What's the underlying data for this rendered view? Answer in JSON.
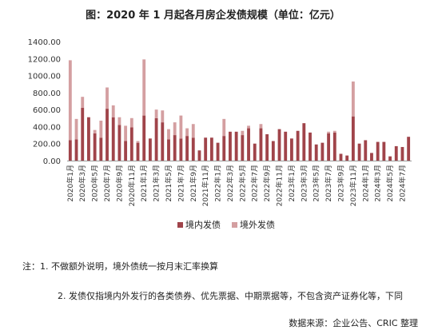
{
  "chart_data": {
    "type": "bar",
    "stacked": true,
    "title": "图：2020 年 1 月起各月房企发债规模（单位：亿元）",
    "xlabel": "",
    "ylabel": "",
    "ylim": [
      0,
      1400
    ],
    "yticks": [
      "0.00",
      "200.00",
      "400.00",
      "600.00",
      "800.00",
      "1000.00",
      "1200.00",
      "1400.00"
    ],
    "grid": false,
    "legend_position": "bottom",
    "categories": [
      "2020年1月",
      "2020年2月",
      "2020年3月",
      "2020年4月",
      "2020年5月",
      "2020年6月",
      "2020年7月",
      "2020年8月",
      "2020年9月",
      "2020年10月",
      "2020年11月",
      "2020年12月",
      "2021年1月",
      "2021年2月",
      "2021年3月",
      "2021年4月",
      "2021年5月",
      "2021年6月",
      "2021年7月",
      "2021年8月",
      "2021年9月",
      "2021年10月",
      "2021年11月",
      "2021年12月",
      "2022年1月",
      "2022年2月",
      "2022年3月",
      "2022年4月",
      "2022年5月",
      "2022年6月",
      "2022年7月",
      "2022年8月",
      "2022年9月",
      "2022年10月",
      "2022年11月",
      "2022年12月",
      "2023年1月",
      "2023年2月",
      "2023年3月",
      "2023年4月",
      "2023年5月",
      "2023年6月",
      "2023年7月",
      "2023年8月",
      "2023年9月",
      "2023年10月",
      "2023年11月",
      "2023年12月",
      "2024年1月",
      "2024年2月",
      "2024年3月",
      "2024年4月",
      "2024年5月",
      "2024年6月",
      "2024年7月",
      "2024年8月"
    ],
    "tick_labels": [
      "2020年1月",
      "2020年3月",
      "2020年5月",
      "2020年7月",
      "2020年9月",
      "2020年11月",
      "2021年1月",
      "2021年3月",
      "2021年5月",
      "2021年7月",
      "2021年9月",
      "2021年11月",
      "2022年1月",
      "2022年3月",
      "2022年5月",
      "2022年7月",
      "2022年9月",
      "2022年11月",
      "2023年1月",
      "2023年3月",
      "2023年5月",
      "2023年7月",
      "2023年9月",
      "2023年11月",
      "2024年1月",
      "2024年3月",
      "2024年5月",
      "2024年7月"
    ],
    "series": [
      {
        "name": "境内发债",
        "color": "#a0444a",
        "values": [
          240,
          250,
          620,
          510,
          320,
          270,
          610,
          510,
          420,
          230,
          390,
          210,
          530,
          260,
          500,
          450,
          250,
          300,
          260,
          290,
          270,
          120,
          270,
          270,
          210,
          290,
          340,
          340,
          300,
          380,
          200,
          380,
          310,
          230,
          370,
          340,
          260,
          350,
          440,
          330,
          190,
          210,
          320,
          330,
          80,
          60,
          520,
          200,
          240,
          90,
          220,
          220,
          50,
          170,
          160,
          280
        ]
      },
      {
        "name": "境外发债",
        "color": "#d49fa1",
        "values": [
          940,
          240,
          130,
          0,
          40,
          200,
          250,
          140,
          90,
          180,
          110,
          20,
          660,
          0,
          100,
          140,
          120,
          150,
          270,
          90,
          160,
          0,
          0,
          0,
          0,
          200,
          0,
          0,
          50,
          30,
          0,
          50,
          0,
          0,
          0,
          0,
          0,
          0,
          0,
          0,
          0,
          0,
          20,
          20,
          0,
          0,
          410,
          0,
          0,
          0,
          0,
          0,
          0,
          0,
          0,
          0
        ]
      }
    ]
  },
  "notes": {
    "line1": "注：1. 不做额外说明，境外债统一按月末汇率换算",
    "line2": "2. 发债仅指境内外发行的各类债券、优先票据、中期票据等，不包含资产证券化等，下同"
  },
  "source": "数据来源：企业公告、CRIC 整理"
}
